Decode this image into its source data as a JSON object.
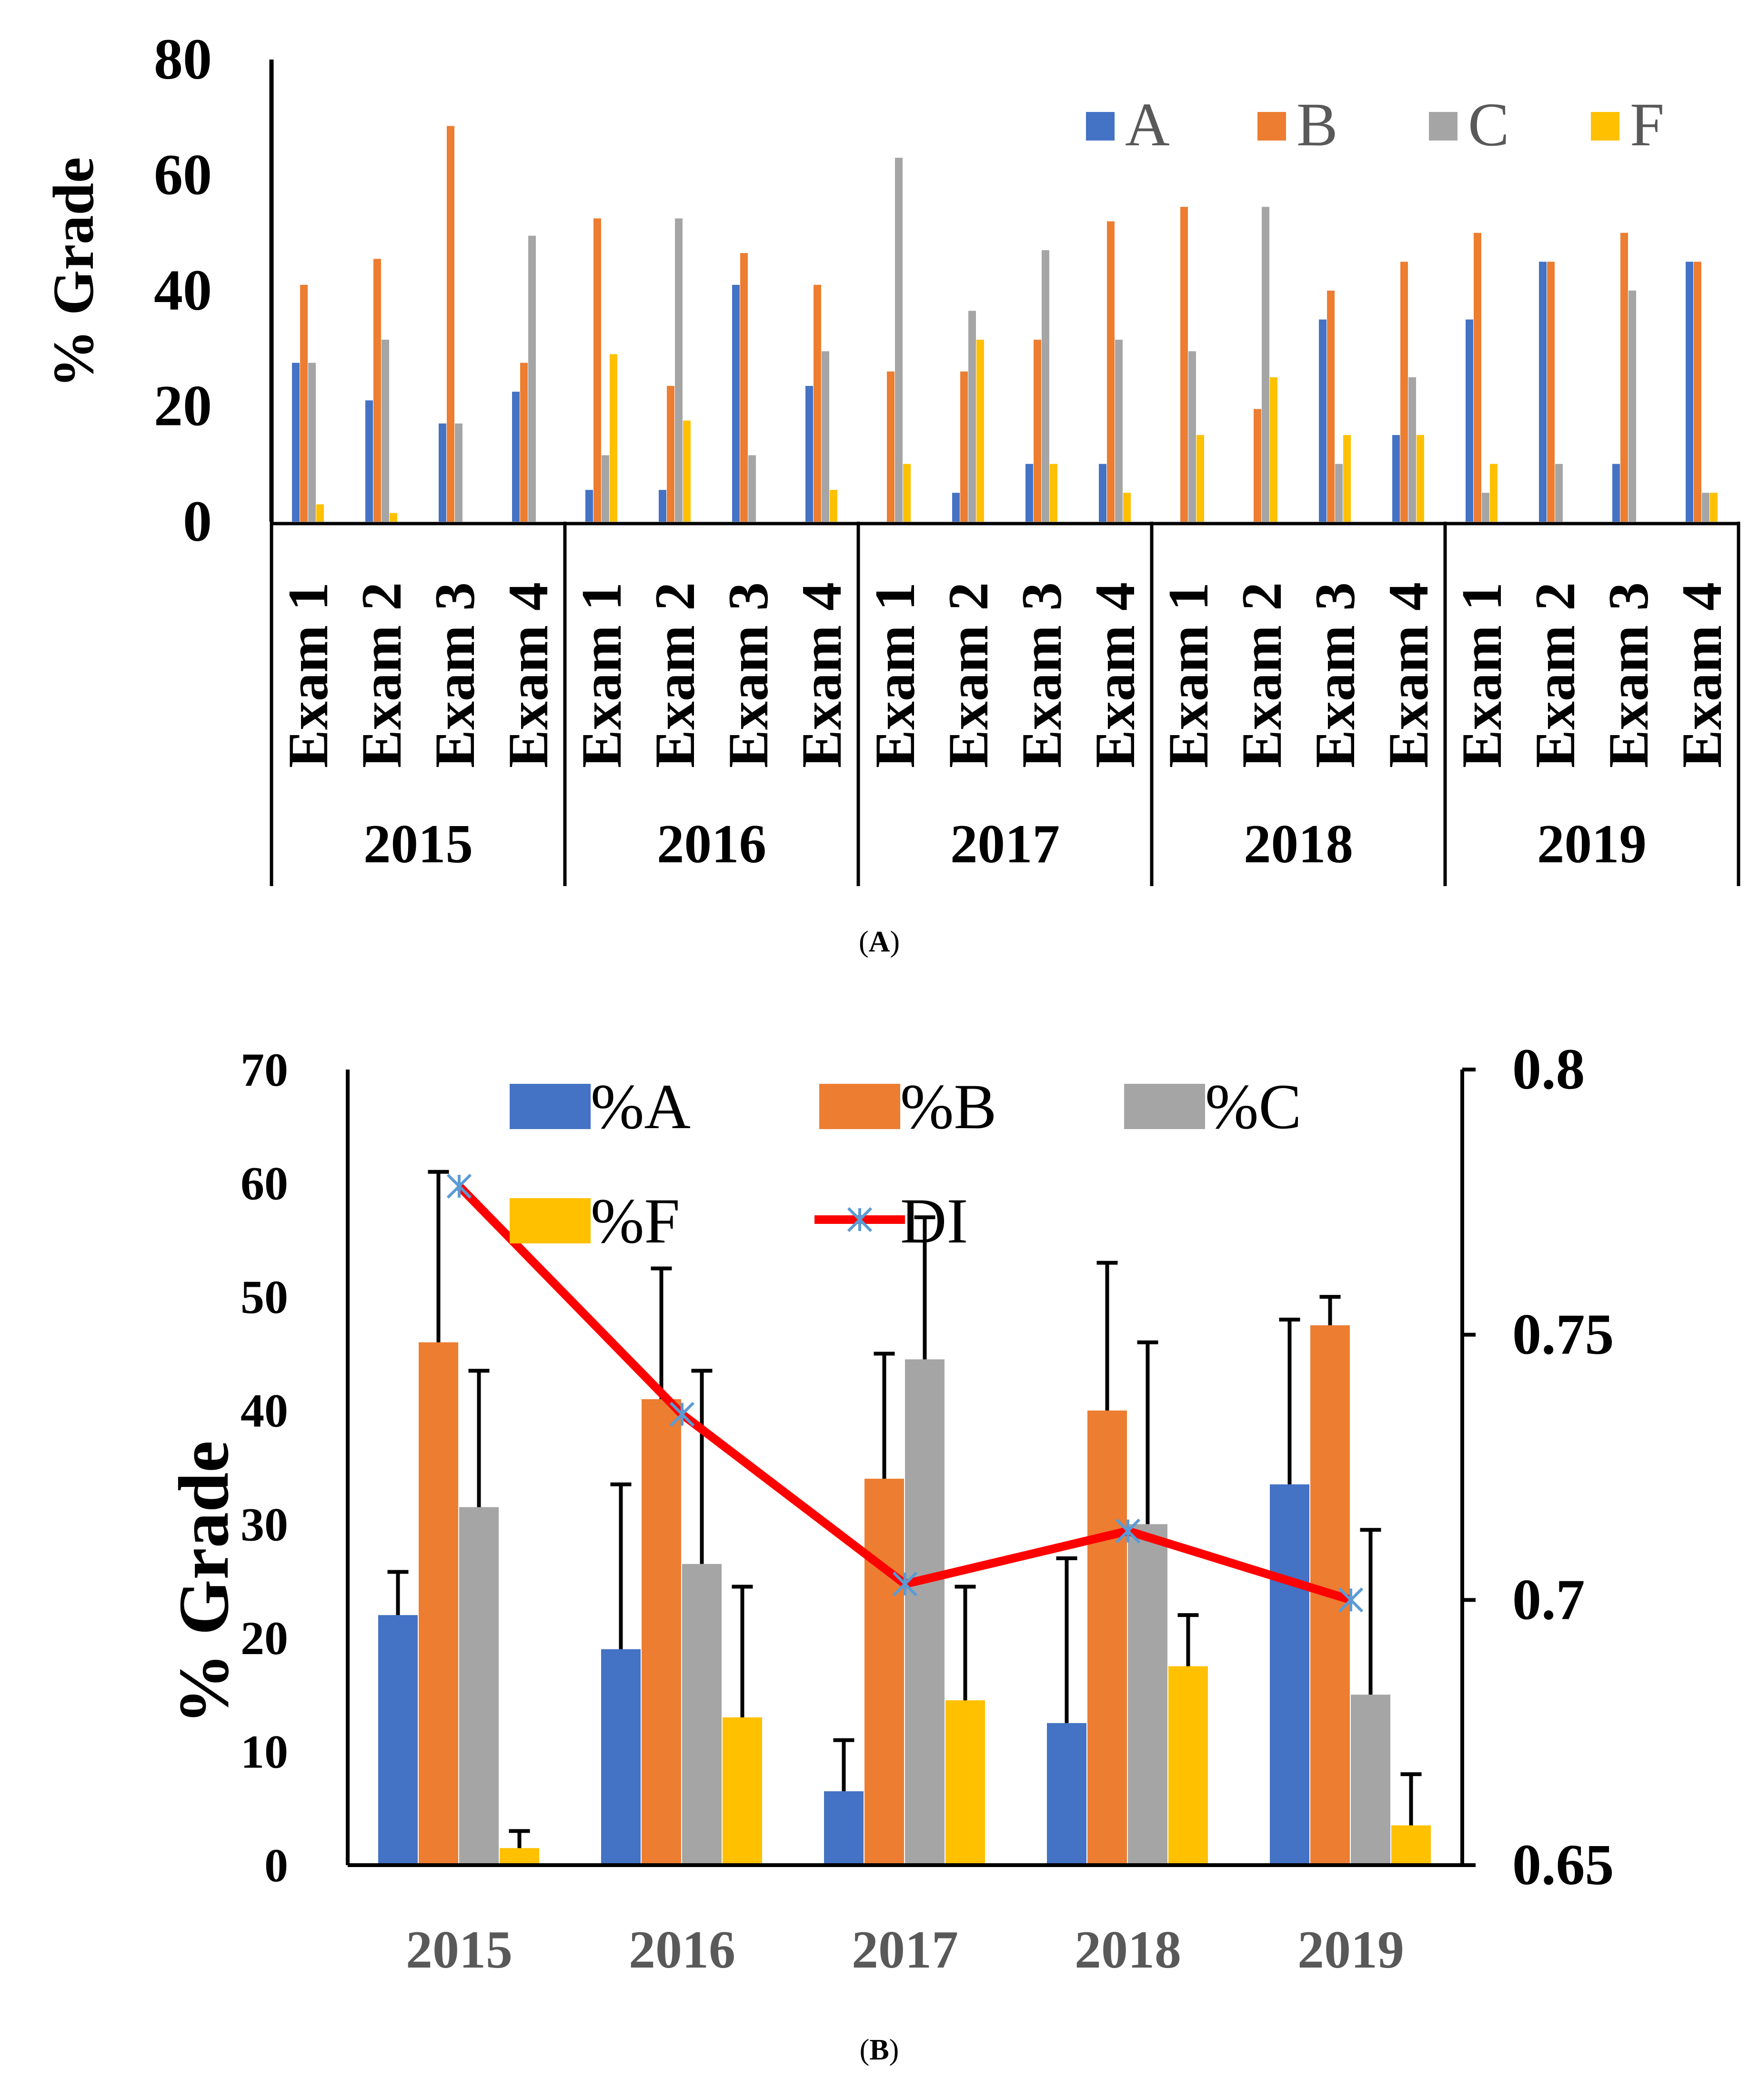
{
  "colors": {
    "A": "#4472C4",
    "B": "#ED7D31",
    "C": "#A5A5A5",
    "F": "#FFC000",
    "DI": "#FF0000",
    "DI_marker": "#5B9BD5",
    "axis": "#000000",
    "year_label_b": "#595959"
  },
  "panel_a_caption_open": "(",
  "panel_a_caption_letter": "A",
  "panel_a_caption_close": ")",
  "panel_b_caption_open": "(",
  "panel_b_caption_letter": "B",
  "panel_b_caption_close": ")",
  "chart_data": [
    {
      "type": "bar",
      "panel": "A",
      "ylabel": "% Grade",
      "ylim": [
        0,
        80
      ],
      "yticks": [
        0,
        20,
        40,
        60,
        80
      ],
      "legend_position": "top-right",
      "groups": [
        {
          "year": "2015",
          "exams": [
            "Exam 1",
            "Exam 2",
            "Exam 3",
            "Exam 4"
          ]
        },
        {
          "year": "2016",
          "exams": [
            "Exam 1",
            "Exam 2",
            "Exam 3",
            "Exam 4"
          ]
        },
        {
          "year": "2017",
          "exams": [
            "Exam 1",
            "Exam 2",
            "Exam 3",
            "Exam 4"
          ]
        },
        {
          "year": "2018",
          "exams": [
            "Exam 1",
            "Exam 2",
            "Exam 3",
            "Exam 4"
          ]
        },
        {
          "year": "2019",
          "exams": [
            "Exam 1",
            "Exam 2",
            "Exam 3",
            "Exam 4"
          ]
        }
      ],
      "series": [
        {
          "name": "A",
          "values": [
            27.5,
            21,
            17,
            22.5,
            5.5,
            5.5,
            41,
            23.5,
            0,
            5,
            10,
            10,
            0,
            0,
            35,
            15,
            35,
            45,
            10,
            45
          ]
        },
        {
          "name": "B",
          "values": [
            41,
            45.5,
            68.5,
            27.5,
            52.5,
            23.5,
            46.5,
            41,
            26,
            26,
            31.5,
            52,
            54.5,
            19.5,
            40,
            45,
            50,
            45,
            50,
            45
          ]
        },
        {
          "name": "C",
          "values": [
            27.5,
            31.5,
            17,
            49.5,
            11.5,
            52.5,
            11.5,
            29.5,
            63,
            36.5,
            47,
            31.5,
            29.5,
            54.5,
            10,
            25,
            5,
            10,
            40,
            5
          ]
        },
        {
          "name": "F",
          "values": [
            3,
            1.5,
            0,
            0,
            29,
            17.5,
            0,
            5.5,
            10,
            31.5,
            10,
            5,
            15,
            25,
            15,
            15,
            10,
            0,
            0,
            5
          ]
        }
      ]
    },
    {
      "type": "bar+line",
      "panel": "B",
      "ylabel": "% Grade",
      "ylim": [
        0,
        70
      ],
      "yticks": [
        0,
        10,
        20,
        30,
        40,
        50,
        60,
        70
      ],
      "y2lim": [
        0.65,
        0.8
      ],
      "y2ticks": [
        "0.65",
        "0.7",
        "0.75",
        "0.8"
      ],
      "legend_position": "top",
      "categories": [
        "2015",
        "2016",
        "2017",
        "2018",
        "2019"
      ],
      "series": [
        {
          "name": "%A",
          "values": [
            22,
            19,
            6.5,
            12.5,
            33.5
          ],
          "err": [
            3.8,
            14.5,
            4.5,
            14.5,
            14.5
          ]
        },
        {
          "name": "%B",
          "values": [
            46,
            41,
            34,
            40,
            47.5
          ],
          "err": [
            15,
            11.5,
            11,
            13,
            2.5
          ]
        },
        {
          "name": "%C",
          "values": [
            31.5,
            26.5,
            44.5,
            30,
            15
          ],
          "err": [
            12,
            17,
            12.5,
            16,
            14.5
          ]
        },
        {
          "name": "%F",
          "values": [
            1.5,
            13,
            14.5,
            17.5,
            3.5
          ],
          "err": [
            1.5,
            11.5,
            10,
            4.5,
            4.5
          ]
        }
      ],
      "line": {
        "name": "DI",
        "axis": "right",
        "values": [
          0.778,
          0.735,
          0.703,
          0.713,
          0.7
        ]
      }
    }
  ]
}
